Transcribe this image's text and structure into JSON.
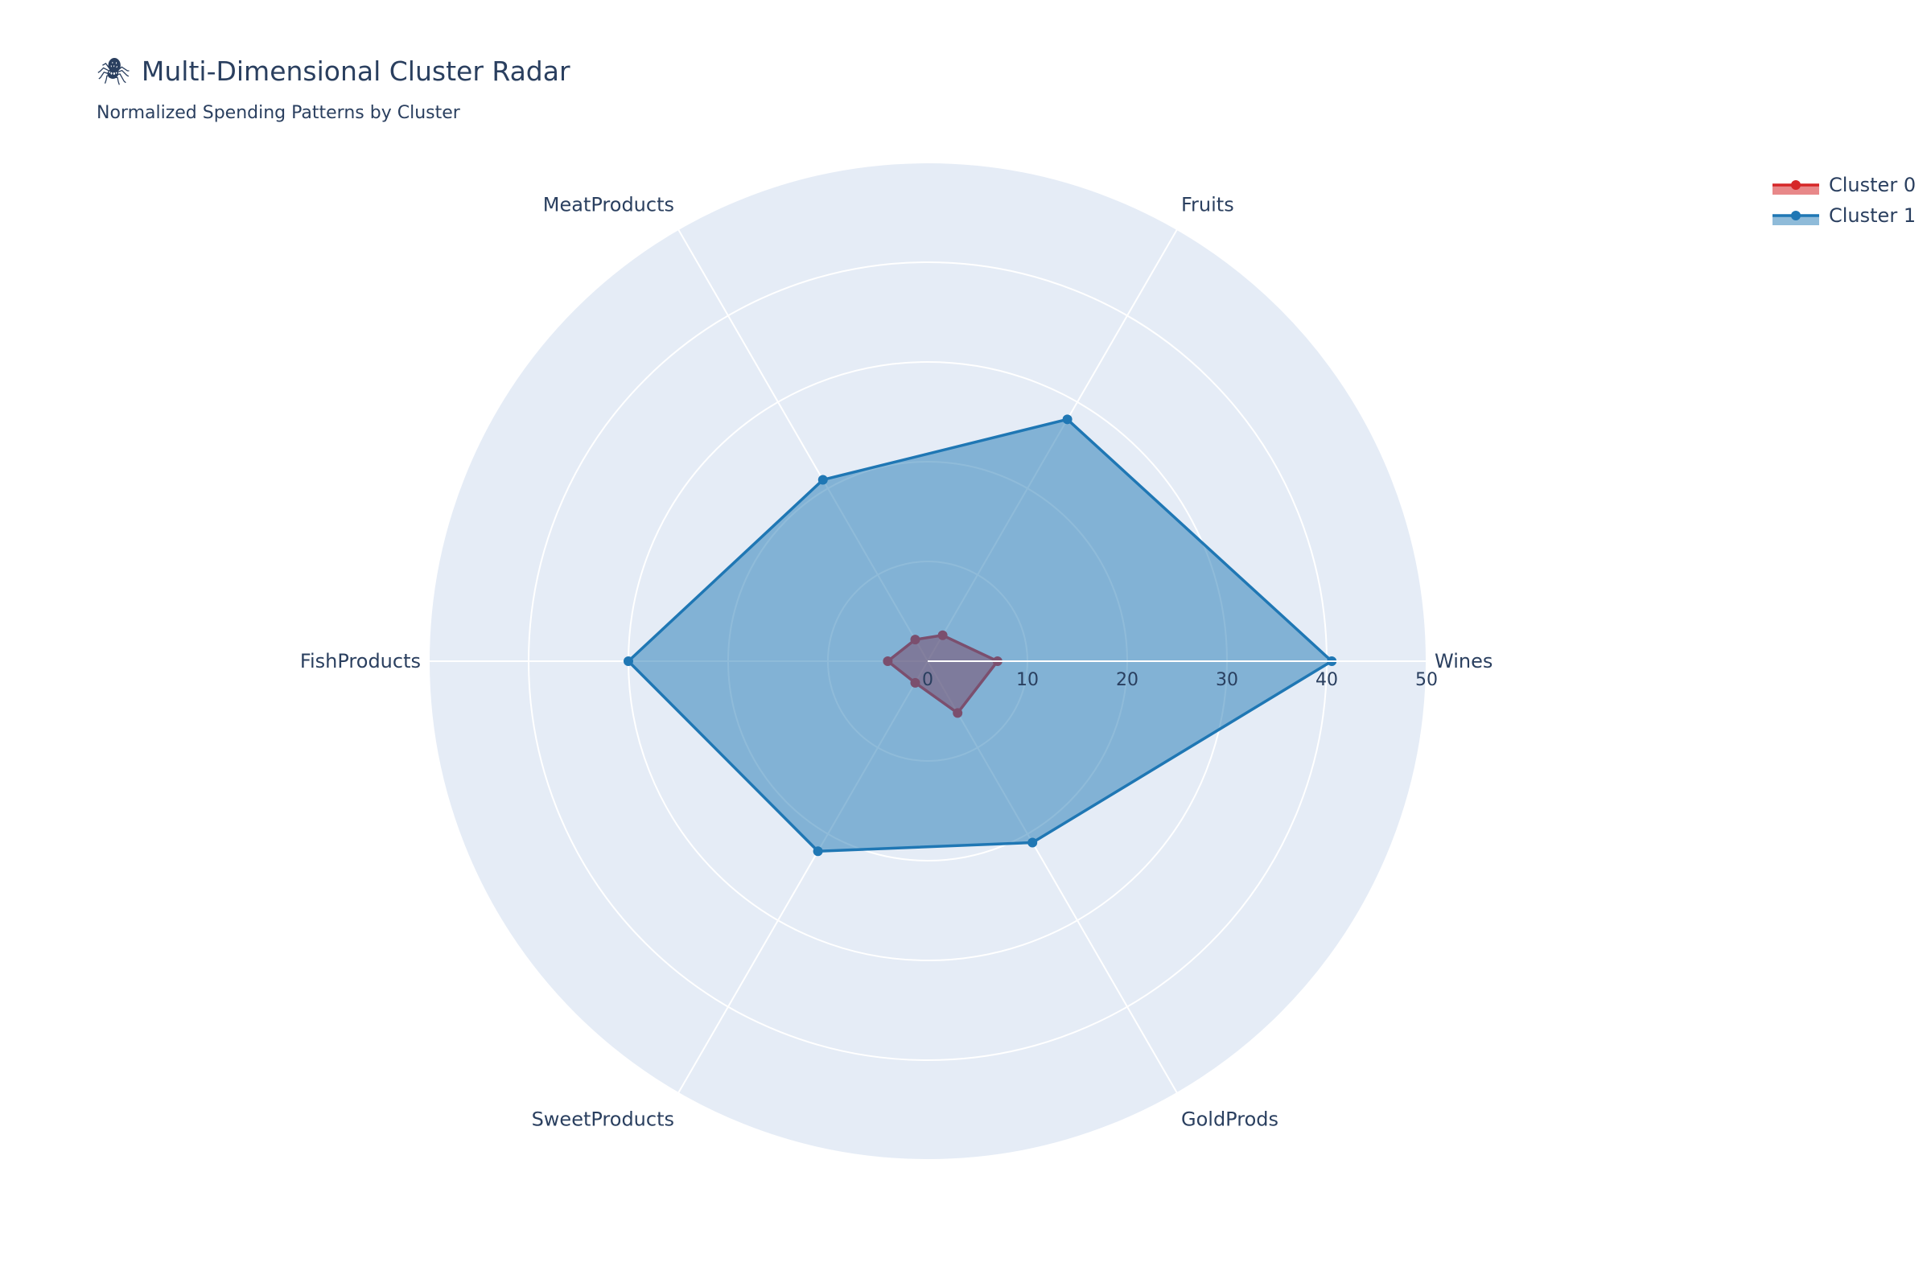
{
  "chart_data": {
    "type": "radar",
    "title_icon": "🕷",
    "title": "Multi-Dimensional Cluster Radar",
    "subtitle": "Normalized Spending Patterns by Cluster",
    "categories": [
      "Wines",
      "Fruits",
      "MeatProducts",
      "FishProducts",
      "SweetProducts",
      "GoldProds"
    ],
    "radial_range": [
      0,
      50
    ],
    "radial_ticks": [
      0,
      10,
      20,
      30,
      40,
      50
    ],
    "grid": true,
    "legend_position": "top-right",
    "series": [
      {
        "name": "Cluster 0",
        "color": "#d62728",
        "fill": "rgba(214,39,40,0.55)",
        "values": [
          7.0,
          3.0,
          2.5,
          4.0,
          2.5,
          6.0
        ]
      },
      {
        "name": "Cluster 1",
        "color": "#1f77b4",
        "fill": "rgba(31,119,180,0.5)",
        "values": [
          40.5,
          28.0,
          21.0,
          30.0,
          22.0,
          21.0
        ]
      }
    ],
    "colors": {
      "polar_bg": "#e5ecf6",
      "grid": "#ffffff",
      "text": "#2a3f5f"
    }
  }
}
